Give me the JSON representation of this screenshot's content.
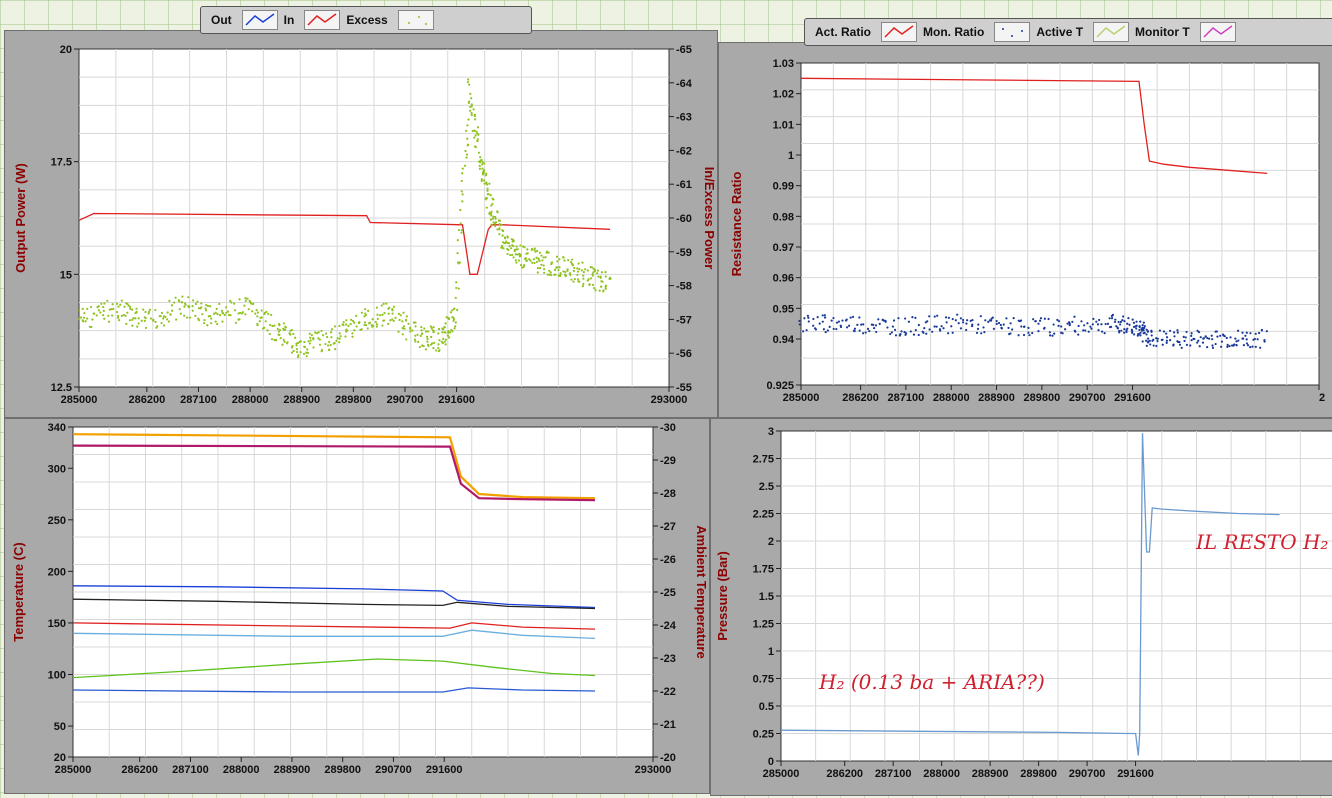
{
  "legend_top_left": {
    "items": [
      {
        "label": "Out",
        "color": "#1a3fd6"
      },
      {
        "label": "In",
        "color": "#e02020"
      },
      {
        "label": "Excess",
        "color": "#8fc320"
      }
    ]
  },
  "legend_top_right": {
    "items": [
      {
        "label": "Act. Ratio",
        "color": "#e02020"
      },
      {
        "label": "Mon. Ratio",
        "color": "#1a3a9a"
      },
      {
        "label": "Active T",
        "color": "#b8d070"
      },
      {
        "label": "Monitor T",
        "color": "#d040c0"
      }
    ]
  },
  "chart_data": [
    {
      "type": "line",
      "xlabel": "",
      "ylabel": "Output Power (W)",
      "y2label": "In/Excess Power",
      "xlim": [
        285000,
        293000
      ],
      "ylim": [
        12.5,
        20
      ],
      "y2lim": [
        -55,
        -65
      ],
      "xticks": [
        "285000",
        "286200",
        "287100",
        "288000",
        "288900",
        "289800",
        "290700",
        "291600",
        "293000"
      ],
      "yticks": [
        "12.5",
        "15",
        "17.5",
        "20"
      ],
      "y2ticks": [
        "-55",
        "-56",
        "-57",
        "-58",
        "-59",
        "-60",
        "-61",
        "-62",
        "-63",
        "-64",
        "-65"
      ],
      "series": [
        {
          "name": "In",
          "axis": "left",
          "color": "#e02020",
          "x": [
            285000,
            285200,
            288900,
            288950,
            290200,
            290300,
            290400,
            290550,
            290600,
            290750,
            292200
          ],
          "y": [
            16.2,
            16.35,
            16.3,
            16.15,
            16.1,
            15.0,
            15.0,
            16.0,
            16.1,
            16.1,
            16.0
          ]
        },
        {
          "name": "Excess",
          "axis": "right",
          "style": "dots",
          "color": "#8fc320",
          "x": [
            285000,
            285500,
            285900,
            286400,
            286800,
            287300,
            287700,
            288000,
            288400,
            288800,
            289200,
            289600,
            289900,
            290100,
            290300,
            290450,
            290600,
            290800,
            291000,
            291300,
            291600,
            291900,
            292200
          ],
          "y": [
            -57.0,
            -57.3,
            -56.9,
            -57.4,
            -57.1,
            -57.3,
            -56.6,
            -56.2,
            -56.4,
            -56.9,
            -57.2,
            -56.5,
            -56.4,
            -57.1,
            -63.8,
            -61.5,
            -60.2,
            -59.2,
            -58.9,
            -58.7,
            -58.5,
            -58.3,
            -58.0
          ]
        }
      ]
    },
    {
      "type": "scatter",
      "ylabel": "Resistance Ratio",
      "xlim": [
        285000,
        293000
      ],
      "ylim": [
        0.925,
        1.03
      ],
      "xticks": [
        "285000",
        "286200",
        "287100",
        "288000",
        "288900",
        "289800",
        "290700",
        "291600",
        "2"
      ],
      "yticks": [
        "0.925",
        "0.94",
        "0.95",
        "0.96",
        "0.97",
        "0.98",
        "0.99",
        "1",
        "1.01",
        "1.02",
        "1.03"
      ],
      "series": [
        {
          "name": "Act. Ratio",
          "style": "line",
          "color": "#e02020",
          "x": [
            285000,
            290220,
            290300,
            290380,
            290600,
            291000,
            291600,
            292200
          ],
          "y": [
            1.025,
            1.024,
            1.01,
            0.998,
            0.997,
            0.996,
            0.995,
            0.994
          ]
        },
        {
          "name": "Mon. Ratio",
          "style": "dots",
          "color": "#1a3a9a",
          "x": [
            285000,
            285800,
            286600,
            287400,
            288200,
            289000,
            289800,
            290200,
            290400,
            291000,
            291600,
            292200
          ],
          "y": [
            0.945,
            0.945,
            0.944,
            0.945,
            0.944,
            0.944,
            0.945,
            0.944,
            0.94,
            0.94,
            0.94,
            0.94
          ]
        }
      ]
    },
    {
      "type": "line",
      "ylabel": "Temperature (C)",
      "y2label": "Ambient Temperature",
      "xlim": [
        285000,
        293000
      ],
      "ylim": [
        20,
        340
      ],
      "y2lim": [
        -20,
        -30
      ],
      "xticks": [
        "285000",
        "286200",
        "287100",
        "288000",
        "288900",
        "289800",
        "290700",
        "291600",
        "293000"
      ],
      "yticks": [
        "20",
        "50",
        "100",
        "150",
        "200",
        "250",
        "300",
        "340"
      ],
      "y2ticks": [
        "-20",
        "-21",
        "-22",
        "-23",
        "-24",
        "-25",
        "-26",
        "-27",
        "-28",
        "-29",
        "-30"
      ],
      "series": [
        {
          "color": "#f2a000",
          "x": [
            285000,
            290200,
            290350,
            290600,
            291200,
            292200
          ],
          "y": [
            333,
            330,
            292,
            275,
            272,
            271
          ]
        },
        {
          "color": "#b0186a",
          "x": [
            285000,
            290200,
            290350,
            290600,
            291200,
            292200
          ],
          "y": [
            322,
            321,
            285,
            271,
            270,
            269
          ]
        },
        {
          "color": "#1a3fd6",
          "x": [
            285000,
            287000,
            289000,
            290100,
            290300,
            291000,
            292200
          ],
          "y": [
            186,
            185,
            183,
            181,
            172,
            168,
            165
          ]
        },
        {
          "color": "#222222",
          "x": [
            285000,
            287000,
            289000,
            290100,
            290300,
            291000,
            292200
          ],
          "y": [
            173,
            171,
            168,
            167,
            170,
            166,
            164
          ]
        },
        {
          "color": "#e02020",
          "x": [
            285000,
            288000,
            290200,
            290500,
            291200,
            292200
          ],
          "y": [
            150,
            147,
            145,
            150,
            146,
            144
          ]
        },
        {
          "color": "#6aaee0",
          "x": [
            285000,
            288000,
            290100,
            290500,
            291200,
            292200
          ],
          "y": [
            140,
            137,
            137,
            143,
            138,
            135
          ]
        },
        {
          "color": "#5cc21c",
          "x": [
            285000,
            286500,
            288000,
            289200,
            290100,
            290800,
            291600,
            292200
          ],
          "y": [
            97,
            103,
            110,
            115,
            113,
            107,
            101,
            99
          ]
        },
        {
          "color": "#2a5ad0",
          "x": [
            285000,
            288000,
            290100,
            290450,
            291200,
            292200
          ],
          "y": [
            85,
            83,
            83,
            87,
            85,
            84
          ]
        }
      ]
    },
    {
      "type": "line",
      "ylabel": "Pressure (Bar)",
      "xlim": [
        285000,
        293000
      ],
      "ylim": [
        0,
        3
      ],
      "xticks": [
        "285000",
        "286200",
        "287100",
        "288000",
        "288900",
        "289800",
        "290700",
        "291600",
        "2"
      ],
      "yticks": [
        "0",
        "0.25",
        "0.5",
        "0.75",
        "1",
        "1.25",
        "1.5",
        "1.75",
        "2",
        "2.25",
        "2.5",
        "2.75",
        "3"
      ],
      "series": [
        {
          "color": "#6a9ad0",
          "x": [
            285000,
            287000,
            289000,
            290000,
            290120,
            290160,
            290180,
            290220,
            290280,
            290320,
            290360,
            290500,
            291000,
            291600,
            292200
          ],
          "y": [
            0.28,
            0.27,
            0.26,
            0.25,
            0.25,
            0.05,
            0.25,
            2.98,
            1.9,
            1.9,
            2.3,
            2.29,
            2.27,
            2.25,
            2.24
          ]
        }
      ],
      "annotations": [
        "H₂ (0.13 ba + ARIA??)",
        "IL RESTO H₂"
      ]
    }
  ]
}
